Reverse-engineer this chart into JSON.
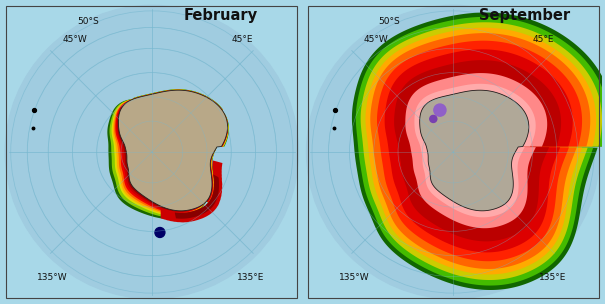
{
  "title_left": "February",
  "title_right": "September",
  "bg_color": "#a8d8e8",
  "land_color_feb": "#b8a888",
  "land_color_sep": "#b0a898",
  "ocean_color": "#a0cce0",
  "grid_color": "#78b8d0",
  "label_color": "#111111",
  "labels": {
    "top": "50°S",
    "left": "45°W",
    "right": "45°E",
    "bot_left": "135°W",
    "bot_right": "135°E"
  },
  "figsize": [
    6.05,
    3.04
  ],
  "dpi": 100,
  "feb_ice_layers": [
    [
      0.18,
      "#1a6600"
    ],
    [
      0.15,
      "#88cc00"
    ],
    [
      0.12,
      "#dddd00"
    ],
    [
      0.1,
      "#ffaa00"
    ],
    [
      0.08,
      "#ff6600"
    ],
    [
      0.06,
      "#ee0000"
    ],
    [
      0.04,
      "#cc0000"
    ],
    [
      0.02,
      "#990000"
    ]
  ],
  "sep_ice_layers": [
    [
      0.72,
      "#116600"
    ],
    [
      0.68,
      "#44bb00"
    ],
    [
      0.63,
      "#cccc00"
    ],
    [
      0.58,
      "#ffaa00"
    ],
    [
      0.53,
      "#ff6600"
    ],
    [
      0.46,
      "#ff2200"
    ],
    [
      0.38,
      "#dd0000"
    ],
    [
      0.28,
      "#bb0000"
    ],
    [
      0.16,
      "#ff8888"
    ],
    [
      0.06,
      "#ffaaaa"
    ]
  ]
}
